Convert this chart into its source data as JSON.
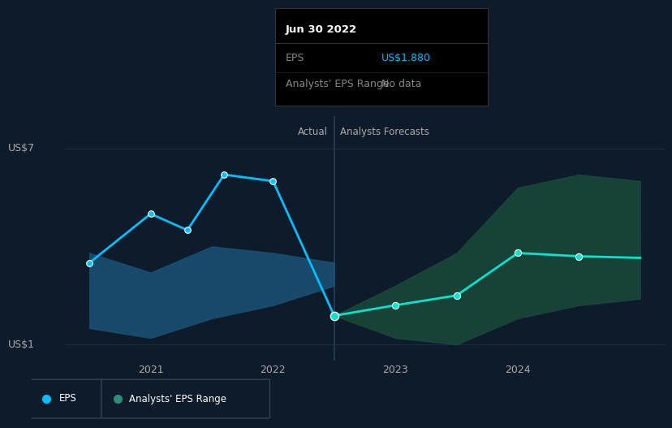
{
  "background_color": "#0d1b2a",
  "plot_bg_color": "#0d1b2a",
  "grid_color": "#1e2d3d",
  "divider_x": 2022.5,
  "ylabel_us7": "US$7",
  "ylabel_us1": "US$1",
  "actual_label": "Actual",
  "forecast_label": "Analysts Forecasts",
  "xticks": [
    2021,
    2022,
    2023,
    2024
  ],
  "ylim": [
    0.5,
    8.0
  ],
  "xlim": [
    2020.3,
    2025.2
  ],
  "tooltip_title": "Jun 30 2022",
  "tooltip_eps_label": "EPS",
  "tooltip_eps_value": "US$1.880",
  "tooltip_range_label": "Analysts' EPS Range",
  "tooltip_range_value": "No data",
  "eps_line_color": "#00bfff",
  "eps_marker_color": "#00bfff",
  "forecast_line_color": "#00e5cc",
  "forecast_marker_color": "#00e5cc",
  "band_actual_color": "#1a5276",
  "band_forecast_color": "#1a4a3a",
  "eps_x": [
    2020.5,
    2021.0,
    2021.3,
    2021.6,
    2022.0,
    2022.5
  ],
  "eps_y": [
    3.5,
    5.0,
    4.5,
    6.2,
    6.0,
    1.88
  ],
  "band_actual_x": [
    2020.5,
    2021.0,
    2021.5,
    2022.0,
    2022.5
  ],
  "band_actual_upper": [
    3.8,
    3.2,
    4.0,
    3.8,
    3.5
  ],
  "band_actual_lower": [
    1.5,
    1.2,
    1.8,
    2.2,
    2.8
  ],
  "forecast_x": [
    2022.5,
    2023.0,
    2023.5,
    2024.0,
    2024.5,
    2025.0
  ],
  "forecast_y": [
    1.88,
    2.2,
    2.5,
    3.8,
    3.7,
    3.65
  ],
  "band_forecast_upper": [
    1.88,
    2.8,
    3.8,
    5.8,
    6.2,
    6.0
  ],
  "band_forecast_lower": [
    1.88,
    1.2,
    1.0,
    1.8,
    2.2,
    2.4
  ],
  "legend_eps_color": "#00bfff",
  "legend_range_color": "#2e8b7a"
}
